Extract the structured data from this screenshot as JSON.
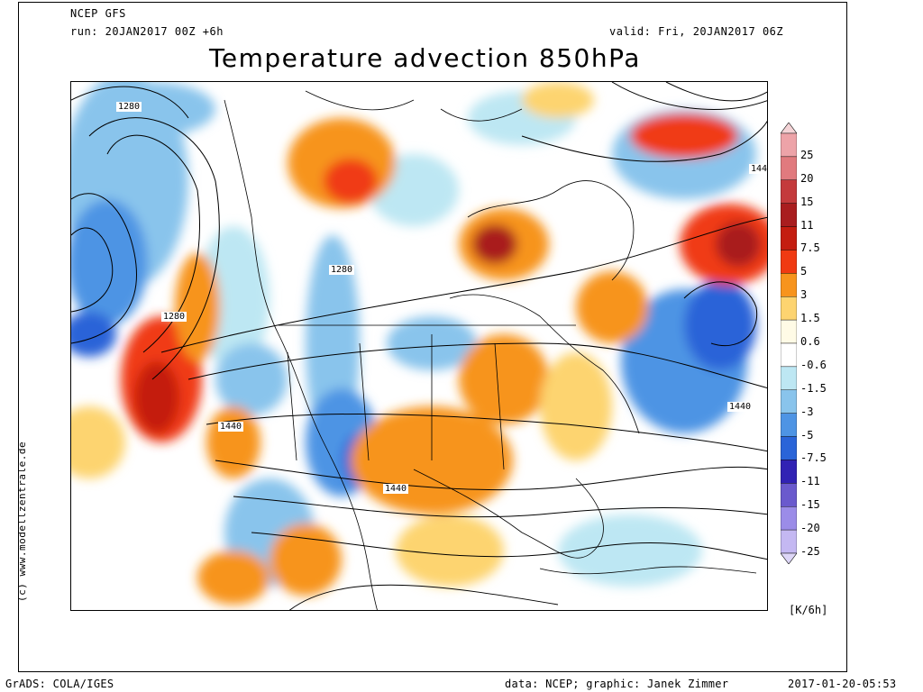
{
  "header": {
    "model": "NCEP GFS",
    "run": "run: 20JAN2017 00Z +6h",
    "valid": "valid: Fri, 20JAN2017 06Z",
    "title": "Temperature advection 850hPa"
  },
  "map": {
    "contour_labels": [
      "1280",
      "1280",
      "1280",
      "1440",
      "1440",
      "1440",
      "144"
    ]
  },
  "colorbar": {
    "unit": "[K/6h]",
    "levels": [
      "25",
      "20",
      "15",
      "11",
      "7.5",
      "5",
      "3",
      "1.5",
      "0.6",
      "-0.6",
      "-1.5",
      "-3",
      "-5",
      "-7.5",
      "-11",
      "-15",
      "-20",
      "-25"
    ],
    "colors": [
      "#f4d3d6",
      "#eda3a8",
      "#e17a7e",
      "#c43a3c",
      "#a91d1f",
      "#c41d10",
      "#f03a12",
      "#f7941d",
      "#fdd470",
      "#fffbe6",
      "#ffffff",
      "#bde7f3",
      "#89c4ec",
      "#4e94e4",
      "#2a64d8",
      "#3122b4",
      "#6a5acd",
      "#9b8ce8",
      "#c4b8f2",
      "#ddd6f7"
    ]
  },
  "watermark": "(c) www.modellzentrale.de",
  "footer": {
    "left": "GrADS: COLA/IGES",
    "center": "data: NCEP; graphic: Janek Zimmer",
    "right": "2017-01-20-05:53"
  }
}
